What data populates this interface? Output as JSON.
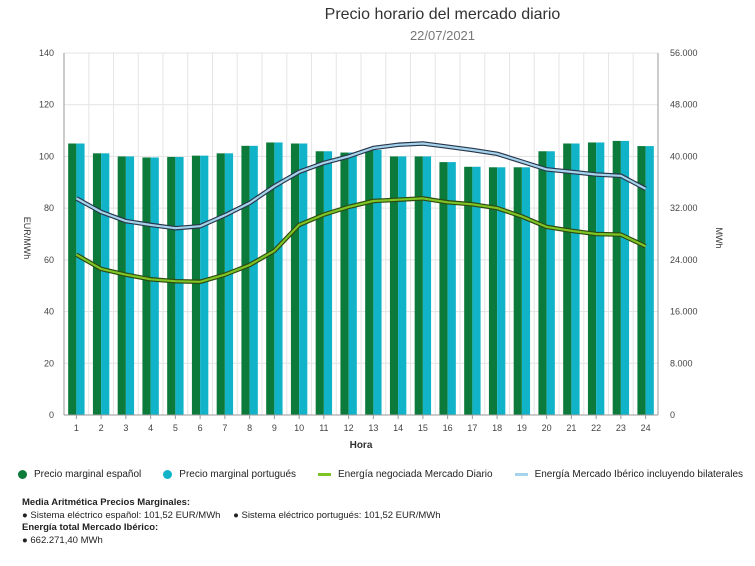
{
  "chart_data": {
    "type": "bar",
    "title": "Precio horario del mercado diario",
    "subtitle": "22/07/2021",
    "xlabel": "Hora",
    "ylabel": "EUR/MWh",
    "ylabel_right": "MWh",
    "ylim": [
      0,
      140
    ],
    "ylim_right": [
      0,
      56000
    ],
    "yticks": [
      "0",
      "20",
      "40",
      "60",
      "80",
      "100",
      "120",
      "140"
    ],
    "yticks_right": [
      "0",
      "8.000",
      "16.000",
      "24.000",
      "32.000",
      "40.000",
      "48.000",
      "56.000"
    ],
    "categories": [
      "1",
      "2",
      "3",
      "4",
      "5",
      "6",
      "7",
      "8",
      "9",
      "10",
      "11",
      "12",
      "13",
      "14",
      "15",
      "16",
      "17",
      "18",
      "19",
      "20",
      "21",
      "22",
      "23",
      "24"
    ],
    "grid": true,
    "legend_position": "bottom",
    "series": [
      {
        "name": "Precio marginal español",
        "kind": "bar",
        "color": "#0b7a3a",
        "axis": "left",
        "values": [
          105.0,
          101.2,
          100.0,
          99.6,
          99.8,
          100.3,
          101.2,
          104.1,
          105.4,
          105.0,
          102.0,
          101.5,
          102.5,
          100.0,
          100.0,
          97.8,
          96.0,
          95.8,
          95.8,
          102.0,
          105.0,
          105.4,
          106.0,
          104.0
        ]
      },
      {
        "name": "Precio marginal portugués",
        "kind": "bar",
        "color": "#11b3c9",
        "axis": "left",
        "values": [
          105.0,
          101.2,
          100.0,
          99.6,
          99.8,
          100.3,
          101.2,
          104.1,
          105.4,
          105.0,
          102.0,
          101.5,
          102.5,
          100.0,
          100.0,
          97.8,
          96.0,
          95.8,
          95.8,
          102.0,
          105.0,
          105.4,
          106.0,
          104.0
        ]
      },
      {
        "name": "Energía negociada Mercado Diario",
        "kind": "line",
        "color": "#7dc424",
        "axis": "right",
        "values": [
          24800,
          22600,
          21700,
          21000,
          20700,
          20600,
          21700,
          23200,
          25400,
          29400,
          31000,
          32200,
          33100,
          33300,
          33500,
          32900,
          32600,
          32000,
          30700,
          29100,
          28500,
          28000,
          27900,
          26100
        ]
      },
      {
        "name": "Energía Mercado Ibérico incluyendo bilaterales",
        "kind": "line",
        "color": "#a6d3ec",
        "axis": "right",
        "values": [
          33500,
          31400,
          30000,
          29400,
          28900,
          29200,
          30900,
          32800,
          35400,
          37600,
          39000,
          40000,
          41300,
          41800,
          42000,
          41500,
          41000,
          40400,
          39200,
          38000,
          37600,
          37200,
          37000,
          35000
        ]
      }
    ]
  },
  "summary": {
    "avg_title": "Media Aritmética Precios Marginales:",
    "avg_es": "● Sistema eléctrico español: 101,52 EUR/MWh",
    "avg_pt": "● Sistema eléctrico portugués: 101,52 EUR/MWh",
    "energy_title": "Energía total Mercado Ibérico:",
    "energy_value": "● 662.271,40 MWh"
  }
}
